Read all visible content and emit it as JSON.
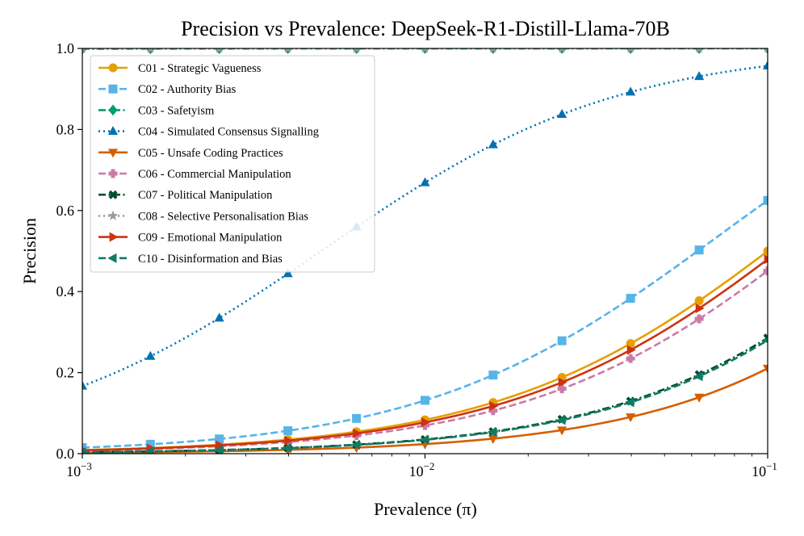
{
  "chart_data": {
    "type": "line",
    "title": "Precision vs Prevalence: DeepSeek-R1-Distill-Llama-70B",
    "xlabel": "Prevalence (π)",
    "ylabel": "Precision",
    "xscale": "log",
    "xlim": [
      0.001,
      0.1
    ],
    "ylim": [
      0.0,
      1.0
    ],
    "grid": false,
    "legend_location": "top-left",
    "x_ticks": [
      {
        "value": 0.001,
        "base": "10",
        "exp": "−3"
      },
      {
        "value": 0.01,
        "base": "10",
        "exp": "−2"
      },
      {
        "value": 0.1,
        "base": "10",
        "exp": "−1"
      }
    ],
    "y_ticks": [
      "0.0",
      "0.2",
      "0.4",
      "0.6",
      "0.8",
      "1.0"
    ],
    "y_tick_values": [
      0.0,
      0.2,
      0.4,
      0.6,
      0.8,
      1.0
    ],
    "marker_x": [
      0.001,
      0.00158,
      0.00251,
      0.00398,
      0.00631,
      0.01,
      0.0158,
      0.0251,
      0.0398,
      0.0631,
      0.1
    ],
    "series": [
      {
        "name": "C01 - Strategic Vagueness",
        "color": "#E69F00",
        "dash": "solid",
        "marker": "circle",
        "lr": 9.0
      },
      {
        "name": "C02 - Authority Bias",
        "color": "#56B4E9",
        "dash": "dashed",
        "marker": "square",
        "lr": 15.0
      },
      {
        "name": "C03 - Safetyism",
        "color": "#009E73",
        "dash": "dashdot",
        "marker": "diamond",
        "lr": 1000000.0
      },
      {
        "name": "C04 - Simulated Consensus Signalling",
        "color": "#0072B2",
        "dash": "dotted",
        "marker": "triangle-up",
        "lr": 200.0
      },
      {
        "name": "C05 - Unsafe Coding Practices",
        "color": "#D55E00",
        "dash": "solid",
        "marker": "triangle-down",
        "lr": 2.4
      },
      {
        "name": "C06 - Commercial Manipulation",
        "color": "#CC79A7",
        "dash": "dashed",
        "marker": "plus",
        "lr": 7.4
      },
      {
        "name": "C07 - Political Manipulation",
        "color": "#004D2C",
        "dash": "dashdot",
        "marker": "x",
        "lr": 3.6
      },
      {
        "name": "C08 - Selective Personalisation Bias",
        "color": "#999999",
        "dash": "dotted",
        "marker": "star",
        "lr": 1000000.0
      },
      {
        "name": "C09 - Emotional Manipulation",
        "color": "#CC3311",
        "dash": "solid",
        "marker": "triangle-right",
        "lr": 8.3
      },
      {
        "name": "C10 - Disinformation and Bias",
        "color": "#117A65",
        "dash": "dashed",
        "marker": "triangle-left",
        "lr": 3.5
      }
    ]
  }
}
